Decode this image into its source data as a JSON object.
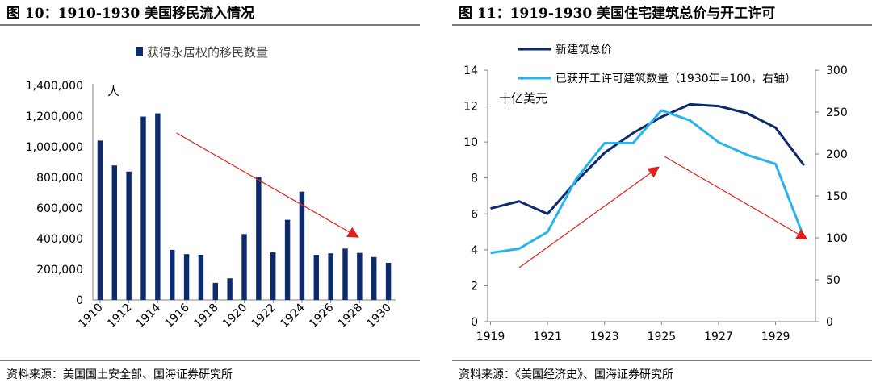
{
  "colors": {
    "navy": "#0d2b6b",
    "cyan": "#27b4ea",
    "arrow": "#e0201b",
    "axis": "#7f7f7f"
  },
  "left_figure": {
    "title": "图 10：1910-1930 美国移民流入情况",
    "source": "资料来源：美国国土安全部、国海证券研究所"
  },
  "right_figure": {
    "title": "图 11：1919-1930 美国住宅建筑总价与开工许可",
    "source": "资料来源：《美国经济史》、国海证券研究所"
  },
  "chart_data": [
    {
      "type": "bar",
      "legend": "获得永居权的移民数量",
      "unit_label": "人",
      "categories": [
        "1910",
        "1911",
        "1912",
        "1913",
        "1914",
        "1915",
        "1916",
        "1917",
        "1918",
        "1919",
        "1920",
        "1921",
        "1922",
        "1923",
        "1924",
        "1925",
        "1926",
        "1927",
        "1928",
        "1929",
        "1930"
      ],
      "x_tick_labels": [
        "1910",
        "1912",
        "1914",
        "1916",
        "1918",
        "1920",
        "1922",
        "1924",
        "1926",
        "1928",
        "1930"
      ],
      "values": [
        1040000,
        878000,
        838000,
        1197000,
        1218000,
        327000,
        299000,
        295000,
        111000,
        141000,
        430000,
        805000,
        310000,
        523000,
        707000,
        294000,
        304000,
        335000,
        307000,
        280000,
        242000
      ],
      "y_ticks": [
        "0",
        "200,000",
        "400,000",
        "600,000",
        "800,000",
        "1,000,000",
        "1,200,000",
        "1,400,000"
      ],
      "ylim": [
        0,
        1400000
      ],
      "color": "#0d2b6b",
      "annotation_arrow": {
        "from": [
          1915.3,
          1090000
        ],
        "to": [
          1927.9,
          410000
        ]
      }
    },
    {
      "type": "line",
      "unit_label": "十亿美元",
      "x": [
        1919,
        1920,
        1921,
        1922,
        1923,
        1924,
        1925,
        1926,
        1927,
        1928,
        1929,
        1930
      ],
      "x_tick_labels": [
        "1919",
        "1921",
        "1923",
        "1925",
        "1927",
        "1929"
      ],
      "xlim": [
        1918.9,
        1930.4
      ],
      "y_ticks": [
        "0",
        "2",
        "4",
        "6",
        "8",
        "10",
        "12",
        "14"
      ],
      "y2_ticks": [
        "0",
        "50",
        "100",
        "150",
        "200",
        "250",
        "300"
      ],
      "ylim": [
        0,
        14
      ],
      "y2lim": [
        0,
        300
      ],
      "series": [
        {
          "name": "新建筑总价",
          "axis": "left",
          "color": "#0d2b6b",
          "values": [
            6.3,
            6.7,
            6.0,
            7.8,
            9.4,
            10.5,
            11.4,
            12.1,
            12.0,
            11.6,
            10.8,
            8.7
          ]
        },
        {
          "name": "已获开工许可建筑数量（1930年=100，右轴）",
          "axis": "right",
          "color": "#27b4ea",
          "values": [
            82,
            87,
            107,
            170,
            213,
            213,
            252,
            240,
            214,
            199,
            188,
            100
          ]
        }
      ],
      "annotation_arrows": [
        {
          "from": [
            1920,
            3.0
          ],
          "to": [
            1924.9,
            8.6
          ]
        },
        {
          "from": [
            1925.1,
            9.2
          ],
          "to": [
            1930.1,
            4.6
          ]
        }
      ]
    }
  ]
}
